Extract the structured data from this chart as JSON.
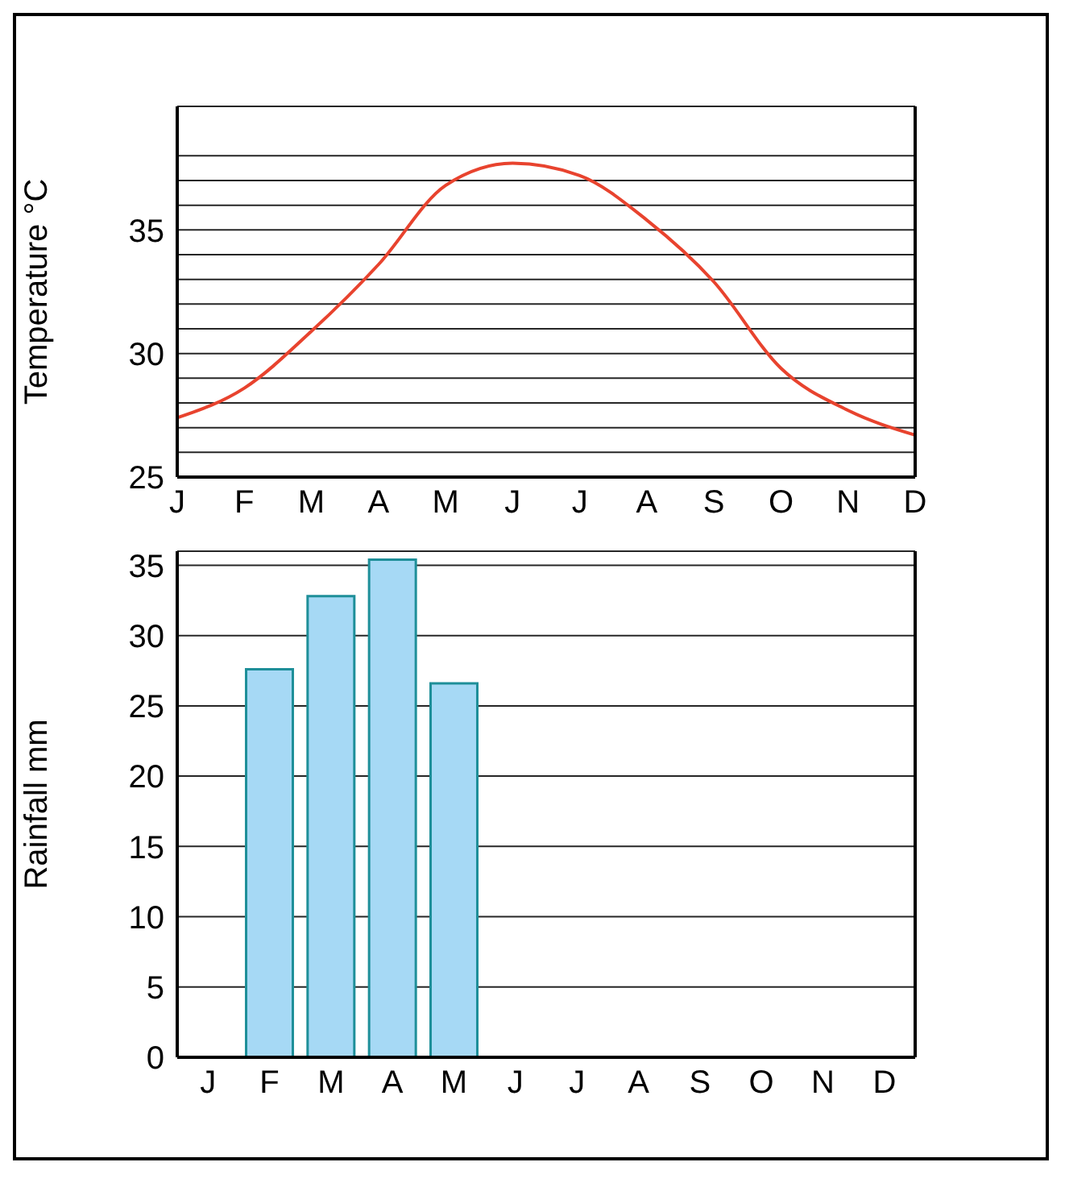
{
  "chart_data": [
    {
      "type": "line",
      "ylabel": "Temperature °C",
      "categories": [
        "J",
        "F",
        "M",
        "A",
        "M",
        "J",
        "J",
        "A",
        "S",
        "O",
        "N",
        "D"
      ],
      "series": [
        {
          "color": "#e8432e",
          "values": [
            27.4,
            28.6,
            30.9,
            33.6,
            36.8,
            37.7,
            37.2,
            35.4,
            32.9,
            29.4,
            27.7,
            26.7
          ]
        }
      ],
      "ylim": [
        25,
        40
      ],
      "yticks": [
        25,
        {
          "value": 26,
          "label": null
        },
        {
          "value": 27,
          "label": null
        },
        {
          "value": 28,
          "label": null
        },
        {
          "value": 29,
          "label": null
        },
        30,
        {
          "value": 31,
          "label": null
        },
        {
          "value": 32,
          "label": null
        },
        {
          "value": 33,
          "label": null
        },
        {
          "value": 34,
          "label": null
        },
        35,
        {
          "value": 36,
          "label": null
        },
        {
          "value": 37,
          "label": null
        },
        {
          "value": 38,
          "label": null
        }
      ],
      "grid": "y",
      "marker": "none",
      "line_style": "solid"
    },
    {
      "type": "bar",
      "ylabel": "Rainfall mm",
      "categories": [
        "J",
        "F",
        "M",
        "A",
        "M",
        "J",
        "J",
        "A",
        "S",
        "O",
        "N",
        "D"
      ],
      "series": [
        {
          "color": "#a6d9f5",
          "values": [
            null,
            27.6,
            32.8,
            35.4,
            26.6,
            null,
            null,
            null,
            null,
            null,
            null,
            null
          ]
        }
      ],
      "ylim": [
        0,
        36
      ],
      "yticks": [
        0,
        5,
        10,
        15,
        20,
        25,
        30,
        35
      ],
      "grid": "y"
    }
  ]
}
